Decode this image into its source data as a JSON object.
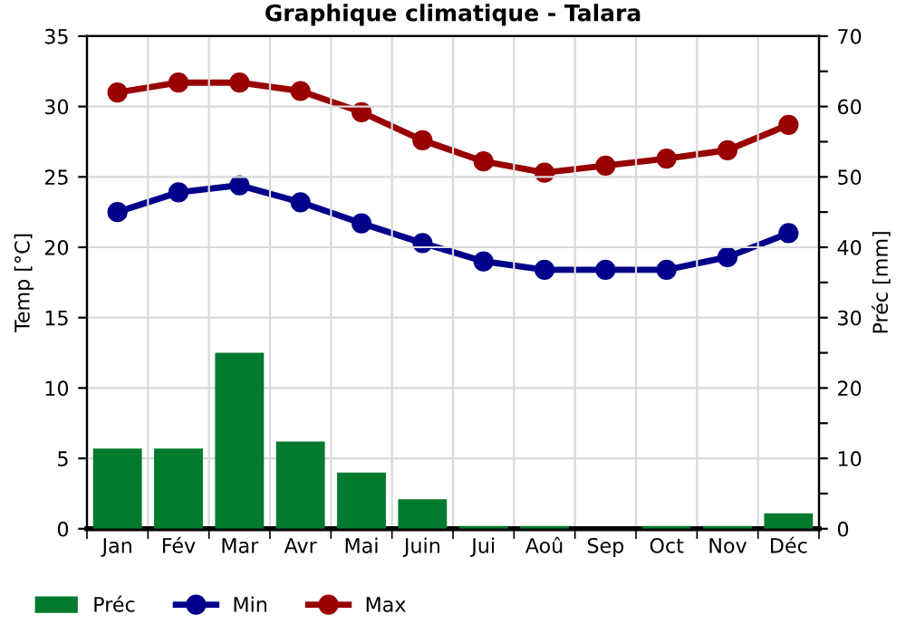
{
  "chart_data": {
    "type": "line",
    "title": "Graphique climatique - Talara",
    "ylabel": "Temp [°C]",
    "y2label": "Préc [mm]",
    "categories": [
      "Jan",
      "Fév",
      "Mar",
      "Avr",
      "Mai",
      "Juin",
      "Jui",
      "Aoû",
      "Sep",
      "Oct",
      "Nov",
      "Déc"
    ],
    "series": [
      {
        "name": "Préc",
        "type": "bar",
        "axis": "y2",
        "color": "#037a2e",
        "values": [
          11.4,
          11.4,
          25,
          12.4,
          8,
          4.2,
          0.4,
          0.4,
          0,
          0.4,
          0.4,
          2.2
        ]
      },
      {
        "name": "Min",
        "color": "#00008b",
        "values": [
          22.5,
          23.9,
          24.4,
          23.2,
          21.7,
          20.3,
          19.0,
          18.4,
          18.4,
          18.4,
          19.3,
          21.0
        ]
      },
      {
        "name": "Max",
        "color": "#990000",
        "values": [
          31.0,
          31.7,
          31.7,
          31.1,
          29.6,
          27.6,
          26.1,
          25.3,
          25.8,
          26.3,
          26.9,
          28.7
        ]
      }
    ],
    "ylim": [
      0,
      35
    ],
    "yticks": [
      0,
      5,
      10,
      15,
      20,
      25,
      30,
      35
    ],
    "y2lim": [
      0,
      70
    ],
    "y2ticks": [
      0,
      {
        "value": 5,
        "label": null
      },
      10,
      {
        "value": 15,
        "label": null
      },
      20,
      {
        "value": 25,
        "label": null
      },
      30,
      {
        "value": 35,
        "label": null
      },
      40,
      {
        "value": 45,
        "label": null
      },
      50,
      {
        "value": 55,
        "label": null
      },
      60,
      {
        "value": 65,
        "label": null
      },
      70
    ],
    "grid": true,
    "legend": "bottom left",
    "marker": "circle",
    "line_style": "solid"
  }
}
